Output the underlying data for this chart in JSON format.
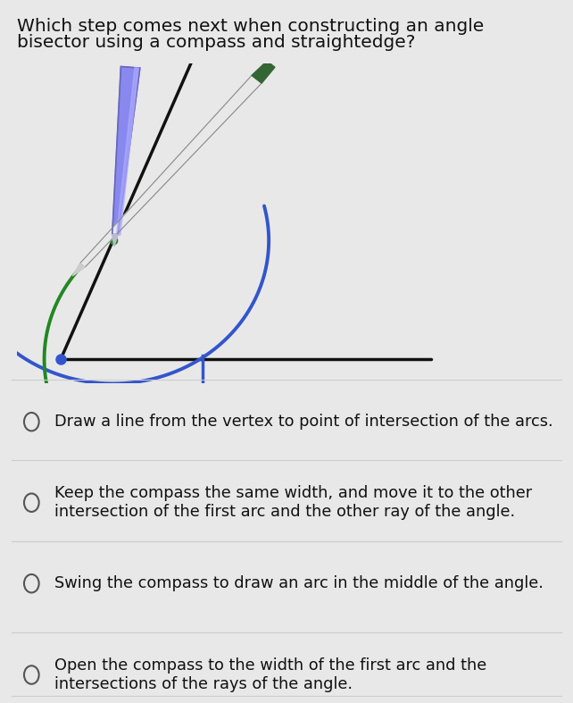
{
  "title_line1": "Which step comes next when constructing an angle",
  "title_line2": "bisector using a compass and straightedge?",
  "title_fontsize": 14.5,
  "bg_color": "#e8e8e8",
  "image_bg": "#f5f5c0",
  "options": [
    "Draw a line from the vertex to point of intersection of the arcs.",
    "Keep the compass the same width, and move it to the other\nintersection of the first arc and the other ray of the angle.",
    "Swing the compass to draw an arc in the middle of the angle.",
    "Open the compass to the width of the first arc and the\nintersections of the rays of the angle."
  ],
  "line_color": "#111111",
  "arc_blue_color": "#3355cc",
  "arc_green_color": "#228822",
  "compass_color": "#8888ee",
  "compass_dark": "#5555aa",
  "pencil_body": "#ccccff",
  "pencil_green": "#226622",
  "pencil_tip": "#cccccc",
  "dot_color": "#3355cc",
  "green_dot_color": "#228822",
  "option_circle_color": "#555555",
  "separator_color": "#cccccc",
  "text_color": "#111111"
}
